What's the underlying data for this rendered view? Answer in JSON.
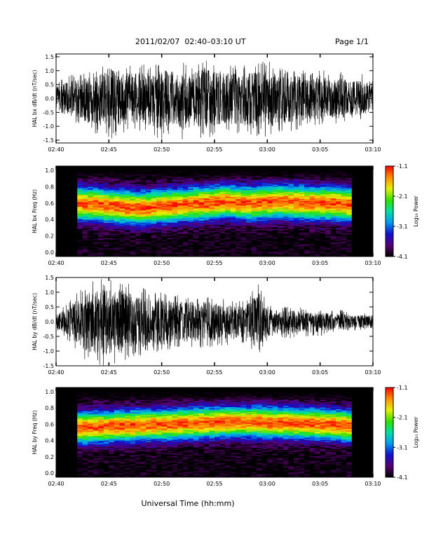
{
  "header": {
    "title": "2011/02/07  02:40–03:10 UT",
    "page_label": "Page 1/1"
  },
  "x_axis": {
    "label": "Universal Time (hh:mm)",
    "ticks": [
      "02:40",
      "02:45",
      "02:50",
      "02:55",
      "03:00",
      "03:05",
      "03:10"
    ],
    "range_minutes": [
      0,
      30
    ]
  },
  "colorbar": {
    "label": "Log₁₀ Power",
    "ticks": [
      "-1.1",
      "-2.1",
      "-3.1",
      "-4.1"
    ],
    "range": [
      -4.1,
      -1.1
    ]
  },
  "panels": [
    {
      "type": "line",
      "ylabel": "HAL  bx  dB/dt  (nT/sec)",
      "yticks": [
        "-1.5",
        "-1.0",
        "-0.5",
        "0.0",
        "0.5",
        "1.0",
        "1.5"
      ],
      "ylim": [
        -1.6,
        1.6
      ]
    },
    {
      "type": "heatmap",
      "ylabel": "HAL  bx  Freq  (Hz)",
      "yticks": [
        "0.0",
        "0.2",
        "0.4",
        "0.6",
        "0.8",
        "1.0"
      ],
      "ylim": [
        -0.05,
        1.05
      ]
    },
    {
      "type": "line",
      "ylabel": "HAL  by  dB/dt  (nT/sec)",
      "yticks": [
        "-1.5",
        "-1.0",
        "-0.5",
        "0.0",
        "0.5",
        "1.0",
        "1.5"
      ],
      "ylim": [
        -1.5,
        1.5
      ]
    },
    {
      "type": "heatmap",
      "ylabel": "HAL  by  Freq  (Hz)",
      "yticks": [
        "0.0",
        "0.2",
        "0.4",
        "0.6",
        "0.8",
        "1.0"
      ],
      "ylim": [
        -0.05,
        1.05
      ]
    }
  ],
  "chart_data": [
    {
      "type": "line",
      "ylabel": "HAL  bx  dB/dt  (nT/sec)",
      "x_range": [
        "02:40",
        "03:10"
      ],
      "ylim": [
        -1.6,
        1.6
      ],
      "series": [
        {
          "x_minutes": [
            0,
            1,
            2,
            3,
            4,
            5,
            6,
            7,
            8,
            9,
            10,
            11,
            12,
            13,
            14,
            15,
            16,
            17,
            18,
            19,
            20,
            21,
            22,
            23,
            24,
            25,
            26,
            27,
            28,
            29,
            30
          ],
          "envelope_max": [
            0.6,
            0.8,
            0.9,
            1.0,
            1.1,
            1.5,
            1.3,
            1.2,
            1.3,
            1.2,
            1.4,
            1.3,
            1.3,
            1.2,
            1.5,
            1.3,
            1.3,
            1.2,
            1.2,
            1.3,
            1.4,
            1.1,
            1.0,
            1.1,
            0.9,
            1.1,
            0.9,
            1.0,
            0.8,
            0.9,
            0.6
          ],
          "envelope_min": [
            -0.6,
            -0.8,
            -0.9,
            -1.2,
            -1.3,
            -1.5,
            -1.3,
            -1.2,
            -1.2,
            -1.3,
            -1.5,
            -1.2,
            -1.5,
            -1.3,
            -1.5,
            -1.3,
            -1.2,
            -1.3,
            -1.3,
            -1.5,
            -1.4,
            -1.3,
            -1.2,
            -1.1,
            -1.0,
            -1.0,
            -0.9,
            -1.0,
            -0.8,
            -0.8,
            -0.6
          ]
        }
      ]
    },
    {
      "type": "heatmap",
      "ylabel": "HAL  bx  Freq  (Hz)",
      "x_range": [
        "02:40",
        "03:10"
      ],
      "ylim": [
        0.0,
        1.0
      ],
      "data_x_range_minutes": [
        2,
        28
      ],
      "band_center_hz": [
        0.6,
        0.59,
        0.58,
        0.57,
        0.56,
        0.55,
        0.54,
        0.55,
        0.56,
        0.57,
        0.58,
        0.59,
        0.6,
        0.61,
        0.62,
        0.61,
        0.6,
        0.6,
        0.61,
        0.62,
        0.62,
        0.61,
        0.6,
        0.6,
        0.6,
        0.59,
        0.58
      ],
      "band_halfwidth_hz": 0.17,
      "peak_log_power": -1.3,
      "background_log_power": -4.1,
      "colorbar_range": [
        -4.1,
        -1.1
      ]
    },
    {
      "type": "line",
      "ylabel": "HAL  by  dB/dt  (nT/sec)",
      "x_range": [
        "02:40",
        "03:10"
      ],
      "ylim": [
        -1.5,
        1.5
      ],
      "series": [
        {
          "x_minutes": [
            0,
            1,
            2,
            3,
            4,
            5,
            6,
            7,
            8,
            9,
            10,
            11,
            12,
            13,
            14,
            15,
            16,
            17,
            18,
            19,
            20,
            21,
            22,
            23,
            24,
            25,
            26,
            27,
            28,
            29,
            30
          ],
          "envelope_max": [
            0.3,
            0.6,
            1.0,
            1.3,
            1.5,
            1.4,
            1.5,
            1.3,
            1.2,
            1.0,
            1.1,
            0.9,
            0.9,
            0.9,
            0.9,
            0.9,
            0.8,
            0.7,
            0.7,
            1.5,
            0.6,
            0.5,
            0.5,
            0.5,
            0.4,
            0.4,
            0.4,
            0.4,
            0.3,
            0.3,
            0.3
          ],
          "envelope_min": [
            -0.3,
            -0.6,
            -1.0,
            -1.4,
            -1.5,
            -1.5,
            -1.5,
            -1.2,
            -1.2,
            -1.0,
            -1.1,
            -0.9,
            -0.9,
            -0.9,
            -0.9,
            -0.9,
            -0.8,
            -0.8,
            -0.7,
            -1.2,
            -0.7,
            -0.6,
            -0.6,
            -0.5,
            -0.5,
            -0.5,
            -0.4,
            -0.4,
            -0.3,
            -0.3,
            -0.3
          ]
        }
      ]
    },
    {
      "type": "heatmap",
      "ylabel": "HAL  by  Freq  (Hz)",
      "x_range": [
        "02:40",
        "03:10"
      ],
      "ylim": [
        0.0,
        1.0
      ],
      "data_x_range_minutes": [
        2,
        28
      ],
      "band_center_hz": [
        0.56,
        0.56,
        0.57,
        0.57,
        0.58,
        0.58,
        0.59,
        0.59,
        0.6,
        0.6,
        0.61,
        0.61,
        0.62,
        0.62,
        0.63,
        0.63,
        0.63,
        0.63,
        0.62,
        0.62,
        0.62,
        0.61,
        0.61,
        0.6,
        0.6,
        0.59,
        0.58
      ],
      "band_halfwidth_hz": 0.16,
      "peak_log_power": -1.3,
      "background_log_power": -4.1,
      "colorbar_range": [
        -4.1,
        -1.1
      ]
    }
  ]
}
